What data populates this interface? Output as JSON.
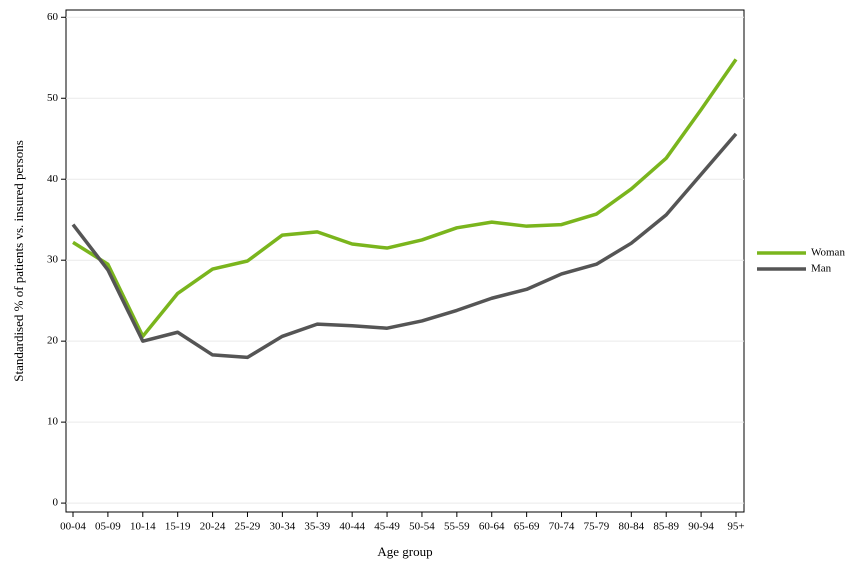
{
  "chart_data": {
    "type": "line",
    "x_label": "Age group",
    "y_label": "Standardised % of patients vs. insured persons",
    "categories": [
      "00-04",
      "05-09",
      "10-14",
      "15-19",
      "20-24",
      "25-29",
      "30-34",
      "35-39",
      "40-44",
      "45-49",
      "50-54",
      "55-59",
      "60-64",
      "65-69",
      "70-74",
      "75-79",
      "80-84",
      "85-89",
      "90-94",
      "95+"
    ],
    "series": [
      {
        "name": "Woman",
        "color": "#7ab51d",
        "values": [
          32.2,
          29.5,
          20.6,
          25.9,
          28.9,
          29.9,
          33.1,
          33.5,
          32.0,
          31.5,
          32.5,
          34.0,
          34.7,
          34.2,
          34.4,
          35.7,
          38.8,
          42.6,
          48.6,
          54.8
        ]
      },
      {
        "name": "Man",
        "color": "#555555",
        "values": [
          34.4,
          28.8,
          20.0,
          21.1,
          18.3,
          18.0,
          20.6,
          22.1,
          21.9,
          21.6,
          22.5,
          23.8,
          25.3,
          26.4,
          28.3,
          29.5,
          32.1,
          35.6,
          40.6,
          45.6
        ]
      }
    ],
    "ylim": [
      -1.1,
      60.9
    ],
    "yticks": [
      0,
      10,
      20,
      30,
      40,
      50,
      60
    ],
    "grid": true,
    "legend": "right"
  }
}
